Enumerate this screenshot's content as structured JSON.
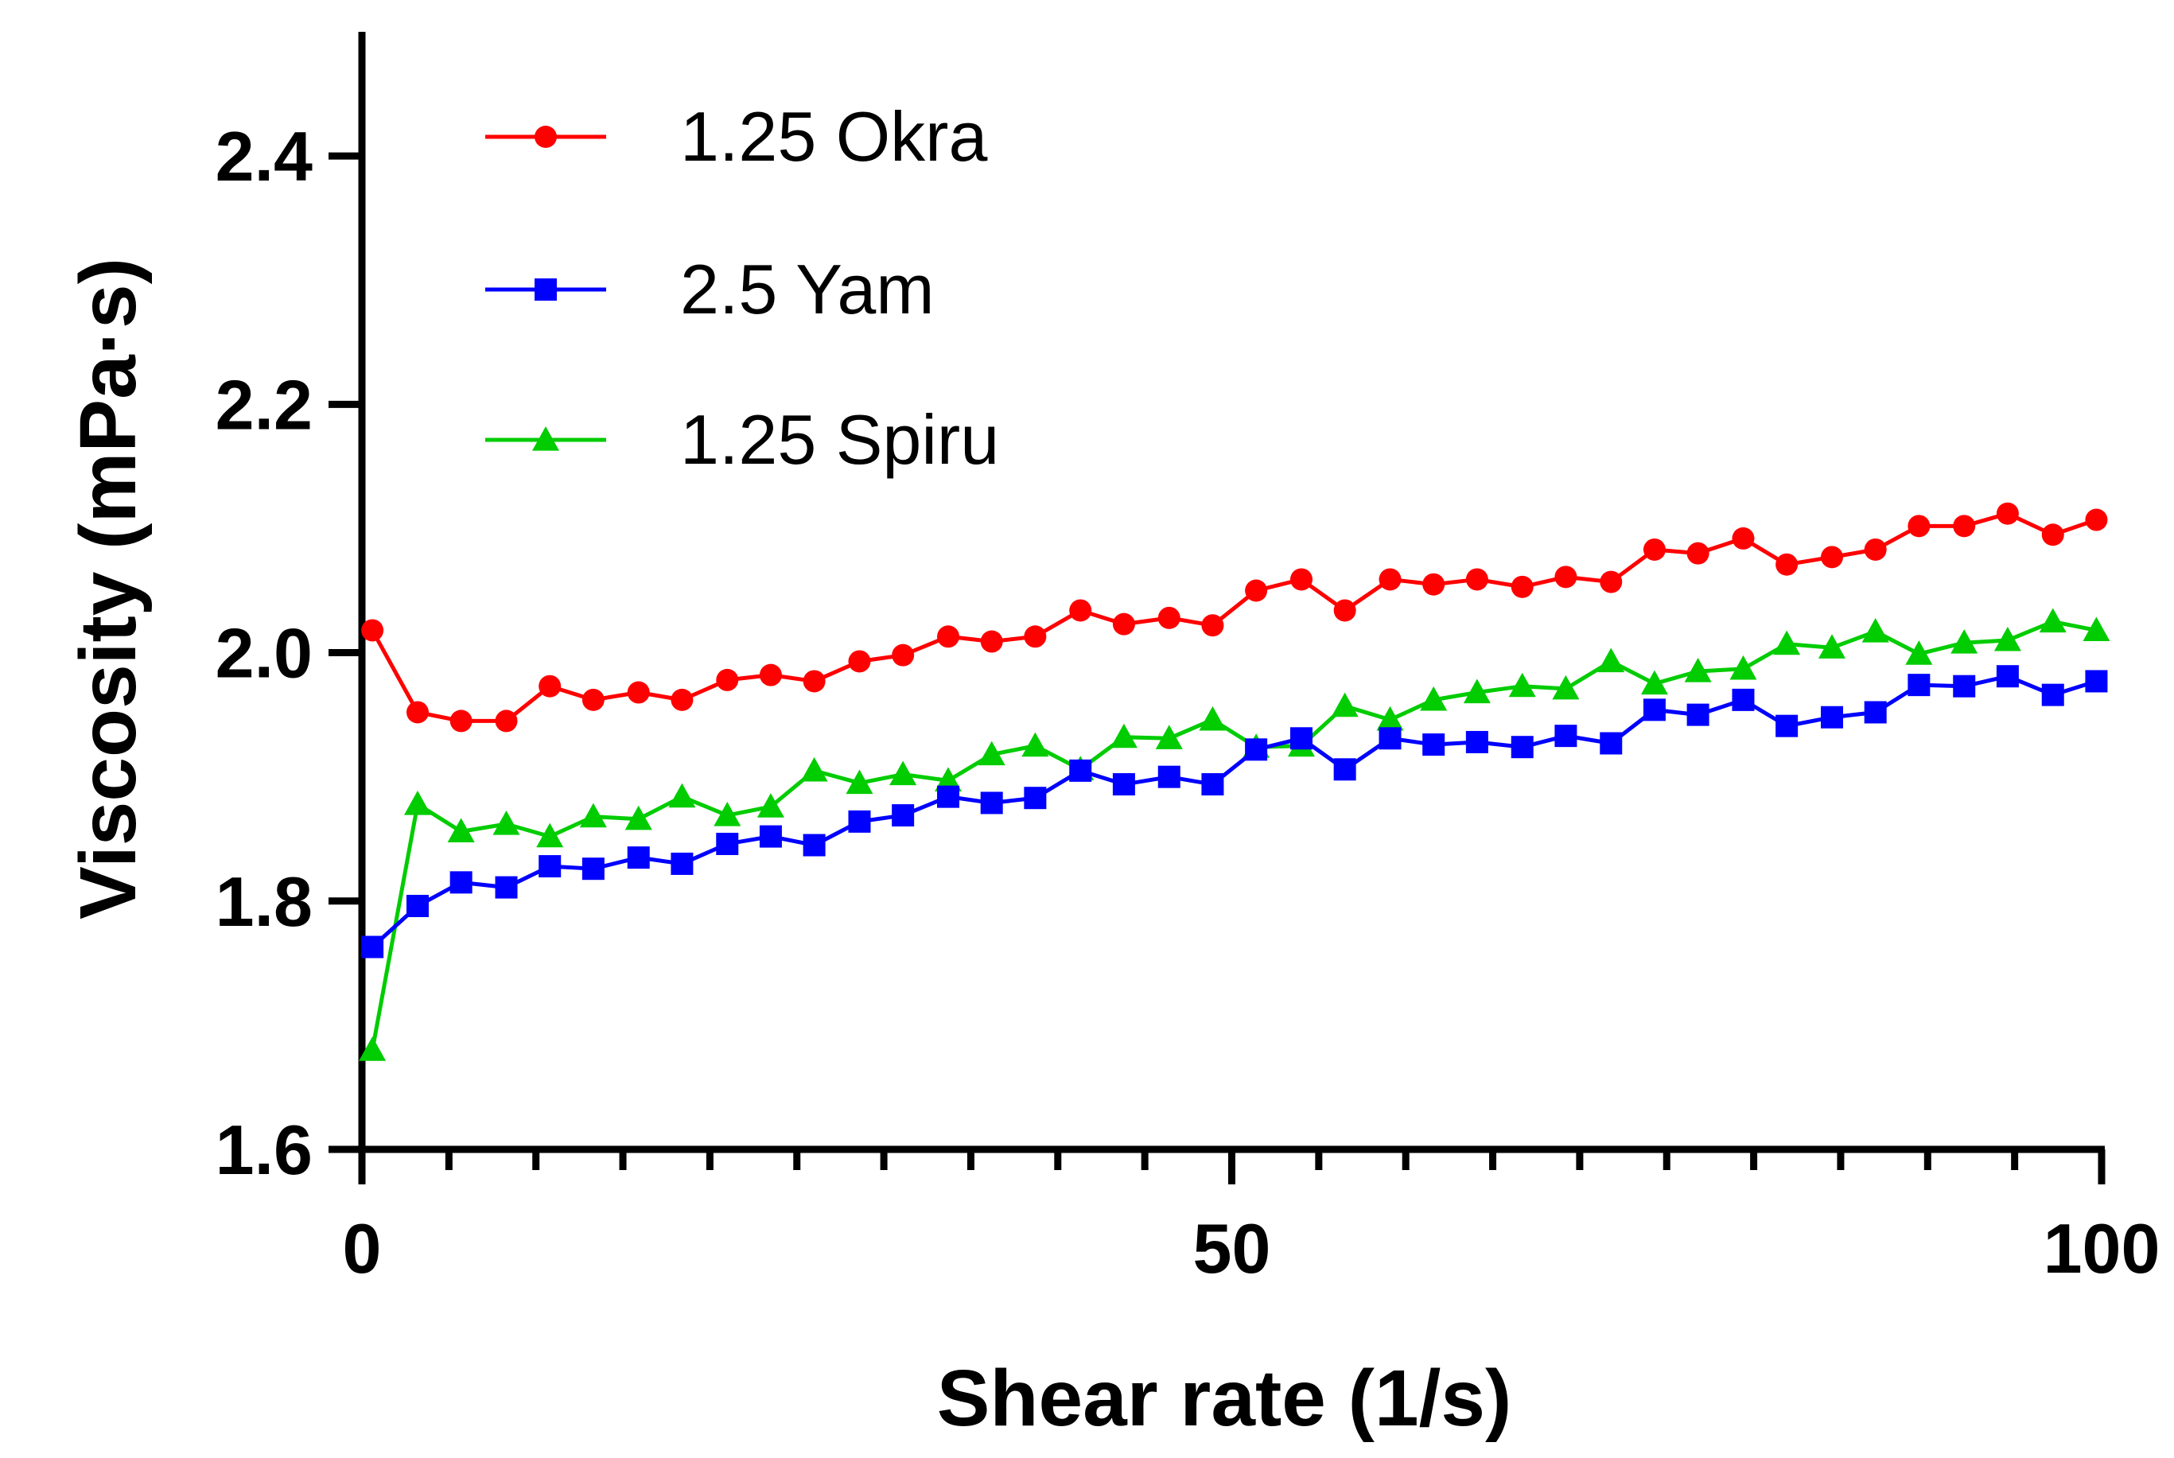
{
  "chart_data": {
    "type": "line",
    "xlabel": "Shear rate (1/s)",
    "ylabel": "Viscosity (mPa·s)",
    "xlim": [
      0,
      100
    ],
    "ylim": [
      1.6,
      2.5
    ],
    "x_major_ticks": [
      0,
      50,
      100
    ],
    "x_tick_labels": [
      "0",
      "50",
      "100"
    ],
    "y_major_ticks": [
      1.6,
      1.8,
      2.0,
      2.2,
      2.4
    ],
    "y_tick_labels": [
      "1.6",
      "1.8",
      "2.0",
      "2.2",
      "2.4"
    ],
    "x_minor_tick_step": 5,
    "grid": false,
    "legend_position": "top-left",
    "x": [
      0.6,
      3.2,
      5.7,
      8.3,
      10.8,
      13.3,
      15.9,
      18.4,
      21.0,
      23.5,
      26.0,
      28.6,
      31.1,
      33.7,
      36.2,
      38.7,
      41.3,
      43.8,
      46.4,
      48.9,
      51.4,
      54.0,
      56.5,
      59.1,
      61.6,
      64.1,
      66.7,
      69.2,
      71.8,
      74.3,
      76.8,
      79.4,
      81.9,
      84.5,
      87.0,
      89.5,
      92.1,
      94.6,
      97.2,
      99.7
    ],
    "series": [
      {
        "name": "1.25 Okra",
        "color": "#ff0000",
        "marker": "circle",
        "values": [
          2.018,
          1.952,
          1.945,
          1.945,
          1.973,
          1.962,
          1.968,
          1.962,
          1.978,
          1.982,
          1.977,
          1.993,
          1.998,
          2.013,
          2.009,
          2.013,
          2.034,
          2.023,
          2.028,
          2.022,
          2.05,
          2.059,
          2.034,
          2.059,
          2.055,
          2.059,
          2.053,
          2.061,
          2.057,
          2.083,
          2.08,
          2.092,
          2.071,
          2.077,
          2.083,
          2.102,
          2.102,
          2.112,
          2.095,
          2.107
        ]
      },
      {
        "name": "2.5 Yam",
        "color": "#0000ff",
        "marker": "square",
        "values": [
          1.763,
          1.796,
          1.815,
          1.811,
          1.828,
          1.826,
          1.835,
          1.83,
          1.846,
          1.852,
          1.845,
          1.864,
          1.869,
          1.884,
          1.879,
          1.883,
          1.905,
          1.894,
          1.9,
          1.894,
          1.922,
          1.931,
          1.906,
          1.931,
          1.926,
          1.928,
          1.924,
          1.933,
          1.927,
          1.954,
          1.95,
          1.962,
          1.941,
          1.948,
          1.952,
          1.974,
          1.973,
          1.981,
          1.966,
          1.977
        ]
      },
      {
        "name": "1.25 Spiru",
        "color": "#00cc00",
        "marker": "triangle",
        "values": [
          1.68,
          1.878,
          1.856,
          1.862,
          1.852,
          1.868,
          1.866,
          1.884,
          1.869,
          1.876,
          1.905,
          1.895,
          1.902,
          1.897,
          1.918,
          1.925,
          1.906,
          1.932,
          1.931,
          1.946,
          1.924,
          1.925,
          1.957,
          1.946,
          1.962,
          1.968,
          1.973,
          1.971,
          1.993,
          1.975,
          1.985,
          1.987,
          2.007,
          2.004,
          2.017,
          1.999,
          2.008,
          2.01,
          2.025,
          2.018
        ]
      }
    ]
  }
}
